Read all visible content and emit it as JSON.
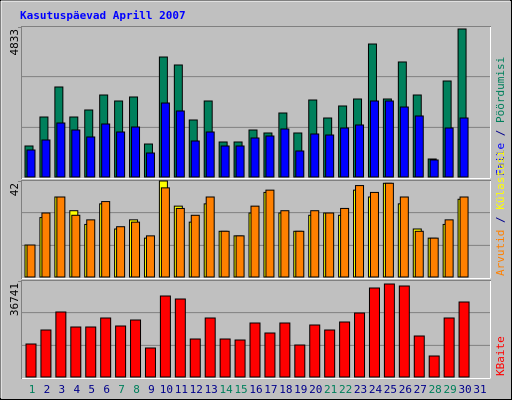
{
  "title": "Kasutuspäevad Aprill 2007",
  "categories": [
    "1",
    "2",
    "3",
    "4",
    "5",
    "6",
    "7",
    "8",
    "9",
    "10",
    "11",
    "12",
    "13",
    "14",
    "15",
    "16",
    "17",
    "18",
    "19",
    "20",
    "21",
    "22",
    "23",
    "24",
    "25",
    "26",
    "27",
    "28",
    "29",
    "30",
    "31"
  ],
  "category_colors": [
    "#00805c",
    "#00008b",
    "#00008b",
    "#00008b",
    "#00008b",
    "#00008b",
    "#00805c",
    "#00805c",
    "#00008b",
    "#00008b",
    "#00008b",
    "#00008b",
    "#00008b",
    "#00805c",
    "#00805c",
    "#00008b",
    "#00008b",
    "#00008b",
    "#00008b",
    "#00008b",
    "#00805c",
    "#00805c",
    "#00008b",
    "#00008b",
    "#00008b",
    "#00008b",
    "#00008b",
    "#00805c",
    "#00805c",
    "#00008b",
    "#00008b"
  ],
  "legend_separator": "/",
  "chart_data": [
    {
      "type": "bar",
      "ylim": [
        0,
        4833
      ],
      "yticks": [
        4833
      ],
      "series": [
        {
          "name": "Pöördumisi",
          "color": "#00805c",
          "values": [
            999,
            1933,
            2900,
            1933,
            2159,
            2642,
            2449,
            2578,
            1063,
            3866,
            3609,
            1837,
            2449,
            1128,
            1128,
            1514,
            1418,
            2062,
            1418,
            2481,
            1901,
            2288,
            2513,
            4285,
            2513,
            3706,
            2642,
            580,
            3093,
            4769,
            0
          ]
        },
        {
          "name": "Faile",
          "color": "#0000ff",
          "values": [
            870,
            1192,
            1740,
            1514,
            1289,
            1708,
            1450,
            1611,
            773,
            2384,
            2127,
            1160,
            1450,
            999,
            999,
            1257,
            1321,
            1547,
            838,
            1386,
            1353,
            1579,
            1676,
            2449,
            2449,
            2255,
            1966,
            548,
            1579,
            1901,
            0
          ]
        }
      ]
    },
    {
      "type": "bar",
      "ylim": [
        0,
        42
      ],
      "yticks": [
        42
      ],
      "series": [
        {
          "name": "Külastusi",
          "color": "#ffff00",
          "values": [
            14,
            26,
            35,
            29,
            23,
            32,
            21,
            25,
            17,
            42,
            31,
            24,
            32,
            20,
            18,
            28,
            37,
            28,
            20,
            27,
            28,
            27,
            38,
            35,
            41,
            32,
            21,
            17,
            23,
            34,
            0
          ]
        },
        {
          "name": "Arvutid",
          "color": "#ff8000",
          "values": [
            14,
            28,
            35,
            27,
            25,
            33,
            22,
            24,
            18,
            39,
            30,
            27,
            35,
            20,
            18,
            31,
            38,
            29,
            20,
            29,
            28,
            30,
            40,
            37,
            41,
            35,
            20,
            17,
            25,
            35,
            0
          ]
        }
      ]
    },
    {
      "type": "bar",
      "ylim": [
        0,
        36741
      ],
      "yticks": [
        36741
      ],
      "series": [
        {
          "name": "KBaite",
          "color": "#ff0000",
          "values": [
            12630,
            17988,
            24877,
            19136,
            19136,
            22580,
            19519,
            21815,
            11099,
            31000,
            29852,
            14543,
            22580,
            14543,
            14161,
            20667,
            16840,
            20667,
            12247,
            19901,
            17988,
            21050,
            24494,
            34062,
            35593,
            34827,
            15692,
            8037,
            22580,
            28704,
            0
          ]
        }
      ]
    }
  ]
}
